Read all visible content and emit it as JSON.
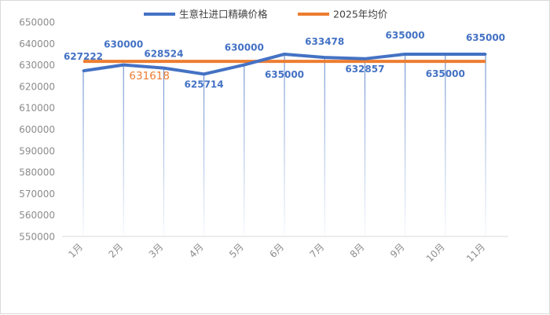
{
  "chart_data": {
    "type": "line",
    "title": "",
    "xlabel": "",
    "ylabel": "",
    "categories": [
      "1月",
      "2月",
      "3月",
      "4月",
      "5月",
      "6月",
      "7月",
      "8月",
      "9月",
      "10月",
      "11月"
    ],
    "ylim": [
      550000,
      650000
    ],
    "yticks": [
      550000,
      560000,
      570000,
      580000,
      590000,
      600000,
      610000,
      620000,
      630000,
      640000,
      650000
    ],
    "grid": false,
    "vertical_drop_lines": true,
    "legend_position": "top",
    "series": [
      {
        "name": "生意社进口精碘价格",
        "color": "#4472C4",
        "values": [
          627222,
          630000,
          628524,
          625714,
          630000,
          635000,
          633478,
          632857,
          635000,
          635000,
          635000
        ],
        "labels_shown": true
      },
      {
        "name": "2025年均价",
        "color": "#ED7D31",
        "values": [
          631618,
          631618,
          631618,
          631618,
          631618,
          631618,
          631618,
          631618,
          631618,
          631618,
          631618
        ],
        "label_text": "631618",
        "label_index": 1
      }
    ]
  },
  "legend": {
    "items": [
      {
        "label": "生意社进口精碘价格",
        "color": "#4472C4"
      },
      {
        "label": "2025年均价",
        "color": "#ED7D31"
      }
    ]
  }
}
